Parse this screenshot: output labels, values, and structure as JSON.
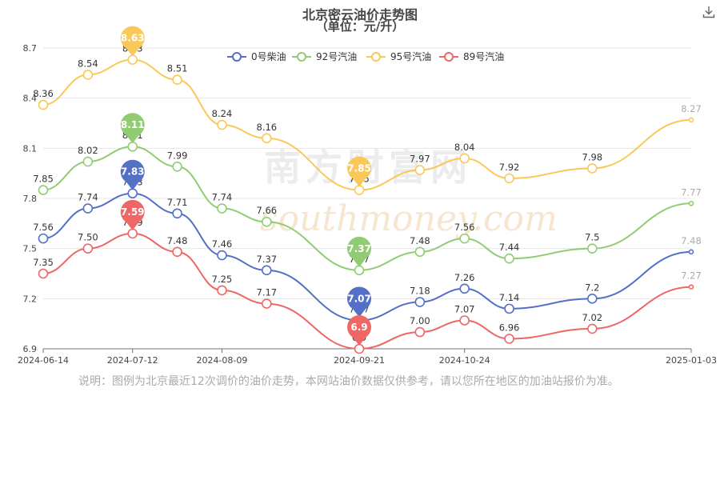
{
  "title": "北京密云油价走势图",
  "subtitle": "（单位：元/升）",
  "note": "说明：图例为北京最近12次调价的油价走势，本网站油价数据仅供参考，请以您所在地区的加油站报价为准。",
  "watermark": {
    "cn": "南方财富网",
    "en": "southmoney.com"
  },
  "chart_data": {
    "type": "line",
    "x": [
      "2024-06-14",
      "2024-06-28",
      "2024-07-12",
      "2024-07-26",
      "2024-08-09",
      "2024-08-23",
      "2024-09-21",
      "2024-10-10",
      "2024-10-24",
      "2024-11-07",
      "2024-12-03",
      "2025-01-03"
    ],
    "x_tick_labels": [
      "2024-06-14",
      "2024-07-12",
      "2024-08-09",
      "2024-09-21",
      "2024-10-24",
      "2025-01-03"
    ],
    "y_ticks": [
      "6.9",
      "7.2",
      "7.5",
      "7.8",
      "8.1",
      "8.4",
      "8.7"
    ],
    "ylim": [
      6.9,
      8.7
    ],
    "grid": true,
    "legend": "top-center",
    "series": [
      {
        "name": "0号柴油",
        "color": "#5470c6",
        "values": [
          7.56,
          7.74,
          7.83,
          7.71,
          7.46,
          7.37,
          7.07,
          7.18,
          7.26,
          7.14,
          7.2,
          7.48
        ],
        "labels": [
          "7.56",
          "7.74",
          "7.83",
          "7.71",
          "7.46",
          "7.37",
          "7.07",
          "7.18",
          "7.26",
          "7.14",
          "7.2",
          "7.48"
        ],
        "max": "7.83",
        "min": "7.07"
      },
      {
        "name": "92号汽油",
        "color": "#91cc75",
        "values": [
          7.85,
          8.02,
          8.11,
          7.99,
          7.74,
          7.66,
          7.37,
          7.48,
          7.56,
          7.44,
          7.5,
          7.77
        ],
        "labels": [
          "7.85",
          "8.02",
          "8.11",
          "7.99",
          "7.74",
          "7.66",
          "7.37",
          "7.48",
          "7.56",
          "7.44",
          "7.5",
          "7.77"
        ],
        "max": "8.11",
        "min": "7.37"
      },
      {
        "name": "95号汽油",
        "color": "#fac858",
        "values": [
          8.36,
          8.54,
          8.63,
          8.51,
          8.24,
          8.16,
          7.85,
          7.97,
          8.04,
          7.92,
          7.98,
          8.27
        ],
        "labels": [
          "8.36",
          "8.54",
          "8.63",
          "8.51",
          "8.24",
          "8.16",
          "7.85",
          "7.97",
          "8.04",
          "7.92",
          "7.98",
          "8.27"
        ],
        "max": "8.63",
        "min": "7.85"
      },
      {
        "name": "89号汽油",
        "color": "#ee6666",
        "values": [
          7.35,
          7.5,
          7.59,
          7.48,
          7.25,
          7.17,
          6.9,
          7.0,
          7.07,
          6.96,
          7.02,
          7.27
        ],
        "labels": [
          "7.35",
          "7.50",
          "7.59",
          "7.48",
          "7.25",
          "7.17",
          "6.9",
          "7.00",
          "7.07",
          "6.96",
          "7.02",
          "7.27"
        ],
        "max": "7.59",
        "min": "6.9"
      }
    ]
  }
}
